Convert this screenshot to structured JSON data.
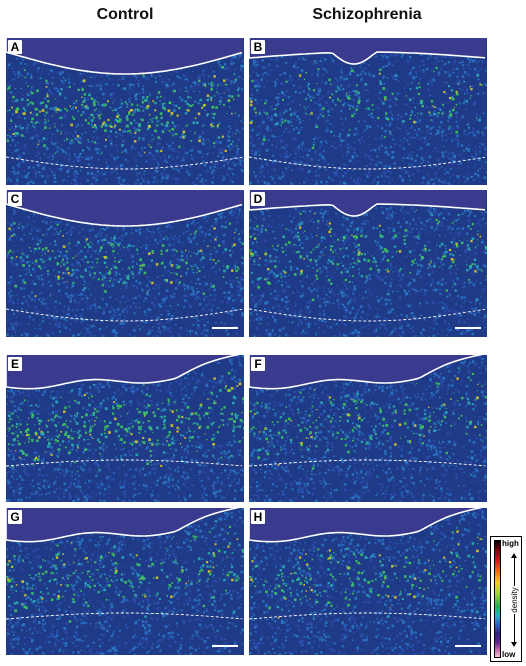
{
  "headers": {
    "left": "Control",
    "right": "Schizophrenia"
  },
  "panels": [
    {
      "label": "A",
      "top_line": "arc",
      "band": "dense",
      "scale_bar": false
    },
    {
      "label": "B",
      "top_line": "dip",
      "band": "sparse",
      "scale_bar": false
    },
    {
      "label": "C",
      "top_line": "arc",
      "band": "medium",
      "scale_bar": true
    },
    {
      "label": "D",
      "top_line": "dip",
      "band": "medium",
      "scale_bar": true
    },
    {
      "label": "E",
      "top_line": "wavy",
      "band": "dense",
      "scale_bar": false
    },
    {
      "label": "F",
      "top_line": "wavy",
      "band": "medium",
      "scale_bar": false
    },
    {
      "label": "G",
      "top_line": "wavy",
      "band": "medium",
      "scale_bar": true
    },
    {
      "label": "H",
      "top_line": "wavy",
      "band": "medium",
      "scale_bar": true
    }
  ],
  "legend": {
    "high": "high",
    "low": "low",
    "axis": "density"
  },
  "colors": {
    "background": "#1f3a86",
    "pial_zone": "#3a3a8e",
    "band_low": "#2ab0b8",
    "band_mid": "#3fcf5a",
    "band_high": "#e8d21e"
  }
}
